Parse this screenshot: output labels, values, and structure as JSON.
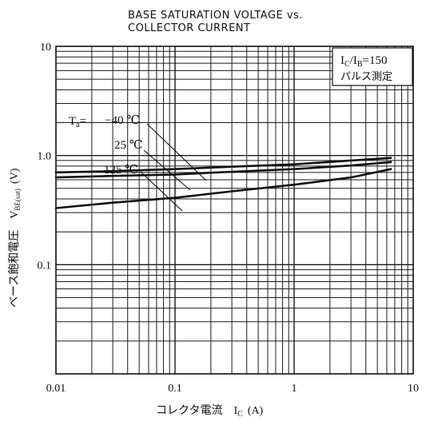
{
  "chart_data": {
    "type": "line",
    "title_line1": "BASE SATURATION VOLTAGE vs.",
    "title_line2": "COLLECTOR CURRENT",
    "xlabel": "コレクタ電流　I",
    "xlabel_sub": "C",
    "xlabel_unit": "(A)",
    "ylabel": "ベース飽和電圧　V",
    "ylabel_sub": "BE(sat)",
    "ylabel_unit": "(V)",
    "x_scale": "log",
    "y_scale": "log",
    "xlim": [
      0.01,
      10
    ],
    "ylim": [
      0.01,
      10
    ],
    "grid": true,
    "x_ticks": [
      {
        "v": 0.01,
        "label": "0.01"
      },
      {
        "v": 0.1,
        "label": "0.1"
      },
      {
        "v": 1,
        "label": "1"
      },
      {
        "v": 10,
        "label": "10"
      }
    ],
    "y_ticks": [
      {
        "v": 10,
        "label": "10"
      },
      {
        "v": 1,
        "label": "1.0"
      },
      {
        "v": 0.1,
        "label": "0.1"
      }
    ],
    "condition_box": {
      "line1_main": "I",
      "line1_sub1": "C",
      "line1_mid": "/I",
      "line1_sub2": "B",
      "line1_tail": "=150",
      "line2": "パルス測定"
    },
    "ta_prefix": "T",
    "ta_sub": "a",
    "ta_eq": "=",
    "series": [
      {
        "name": "−40 ℃",
        "x": [
          0.01,
          0.03,
          0.1,
          0.3,
          1,
          3,
          6.5
        ],
        "y": [
          0.7,
          0.72,
          0.75,
          0.79,
          0.83,
          0.9,
          0.95
        ]
      },
      {
        "name": "25 ℃",
        "x": [
          0.01,
          0.03,
          0.1,
          0.3,
          1,
          3,
          6.5
        ],
        "y": [
          0.63,
          0.65,
          0.67,
          0.71,
          0.75,
          0.81,
          0.87
        ]
      },
      {
        "name": "125 ℃",
        "x": [
          0.01,
          0.03,
          0.1,
          0.3,
          1,
          3,
          6.5
        ],
        "y": [
          0.33,
          0.37,
          0.41,
          0.47,
          0.54,
          0.63,
          0.75
        ]
      }
    ]
  }
}
